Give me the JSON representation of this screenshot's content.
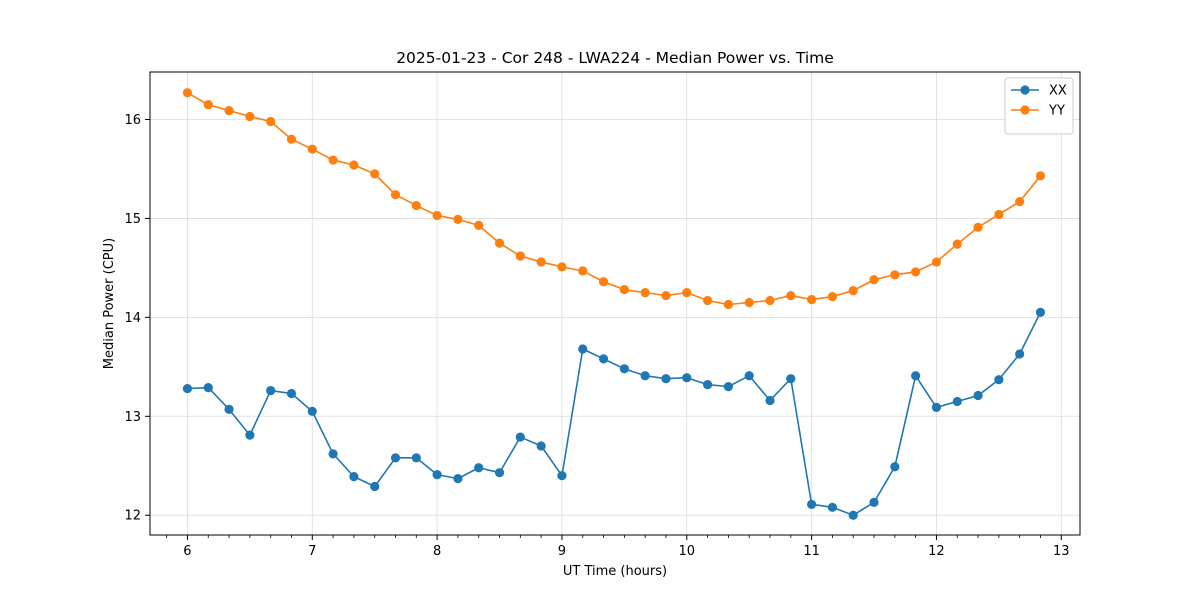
{
  "chart_data": {
    "type": "line",
    "title": "2025-01-23 - Cor 248 - LWA224 - Median Power vs. Time",
    "xlabel": "UT Time (hours)",
    "ylabel": "Median Power (CPU)",
    "xlim": [
      5.7,
      13.15
    ],
    "ylim": [
      11.8,
      16.48
    ],
    "xticks": [
      6,
      7,
      8,
      9,
      10,
      11,
      12,
      13
    ],
    "yticks": [
      12,
      13,
      14,
      15,
      16
    ],
    "grid": true,
    "legend_position": "top-right",
    "x": [
      6.0,
      6.1667,
      6.3333,
      6.5,
      6.6667,
      6.8333,
      7.0,
      7.1667,
      7.3333,
      7.5,
      7.6667,
      7.8333,
      8.0,
      8.1667,
      8.3333,
      8.5,
      8.6667,
      8.8333,
      9.0,
      9.1667,
      9.3333,
      9.5,
      9.6667,
      9.8333,
      10.0,
      10.1667,
      10.3333,
      10.5,
      10.6667,
      10.8333,
      11.0,
      11.1667,
      11.3333,
      11.5,
      11.6667,
      11.8333,
      12.0,
      12.1667,
      12.3333,
      12.5,
      12.6667,
      12.8333
    ],
    "series": [
      {
        "name": "XX",
        "color": "#1f77b4",
        "values": [
          13.28,
          13.29,
          13.07,
          12.81,
          13.26,
          13.23,
          13.05,
          12.62,
          12.39,
          12.29,
          12.58,
          12.58,
          12.41,
          12.37,
          12.48,
          12.43,
          12.79,
          12.7,
          12.4,
          13.68,
          13.58,
          13.48,
          13.41,
          13.38,
          13.39,
          13.32,
          13.3,
          13.41,
          13.16,
          13.38,
          12.11,
          12.08,
          12.0,
          12.13,
          12.49,
          13.41,
          13.09,
          13.15,
          13.21,
          13.37,
          13.63,
          14.05
        ]
      },
      {
        "name": "YY",
        "color": "#ff7f0e",
        "values": [
          16.27,
          16.15,
          16.09,
          16.03,
          15.98,
          15.8,
          15.7,
          15.59,
          15.54,
          15.45,
          15.24,
          15.13,
          15.03,
          14.99,
          14.93,
          14.75,
          14.62,
          14.56,
          14.51,
          14.47,
          14.36,
          14.28,
          14.25,
          14.22,
          14.25,
          14.17,
          14.13,
          14.15,
          14.17,
          14.22,
          14.18,
          14.21,
          14.27,
          14.38,
          14.43,
          14.46,
          14.56,
          14.74,
          14.91,
          15.04,
          15.17,
          15.43
        ]
      }
    ]
  }
}
